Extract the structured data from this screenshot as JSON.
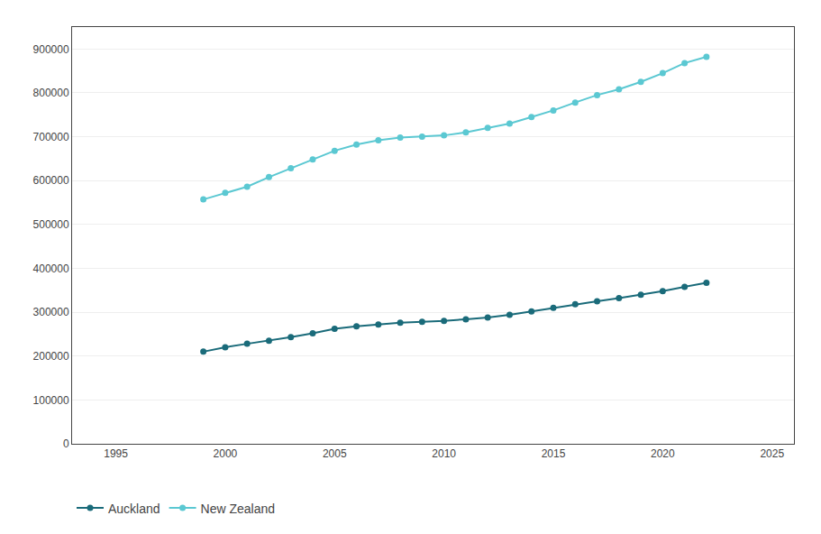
{
  "chart_data": {
    "type": "line",
    "x": [
      1999,
      2000,
      2001,
      2002,
      2003,
      2004,
      2005,
      2006,
      2007,
      2008,
      2009,
      2010,
      2011,
      2012,
      2013,
      2014,
      2015,
      2016,
      2017,
      2018,
      2019,
      2020,
      2021,
      2022
    ],
    "series": [
      {
        "name": "New Zealand",
        "color": "#5bc8d2",
        "marker": "circle",
        "line_style": "solid",
        "values": [
          557000,
          572000,
          586000,
          608000,
          628000,
          648000,
          668000,
          682000,
          692000,
          698000,
          700000,
          703000,
          710000,
          720000,
          730000,
          745000,
          760000,
          778000,
          795000,
          808000,
          825000,
          845000,
          868000,
          882000
        ]
      },
      {
        "name": "Auckland",
        "color": "#1a6b7a",
        "marker": "circle",
        "line_style": "solid",
        "values": [
          210000,
          220000,
          228000,
          235000,
          243000,
          252000,
          262000,
          268000,
          272000,
          276000,
          278000,
          280000,
          284000,
          288000,
          294000,
          302000,
          310000,
          318000,
          325000,
          332000,
          340000,
          348000,
          358000,
          367000
        ]
      }
    ],
    "xlim": [
      1993,
      2026
    ],
    "xticks": [
      1995,
      2000,
      2005,
      2010,
      2015,
      2020,
      2025
    ],
    "ylim": [
      0,
      950000
    ],
    "yticks": [
      0,
      100000,
      200000,
      300000,
      400000,
      500000,
      600000,
      700000,
      800000,
      900000
    ],
    "grid": true,
    "legend": "bottom left"
  }
}
